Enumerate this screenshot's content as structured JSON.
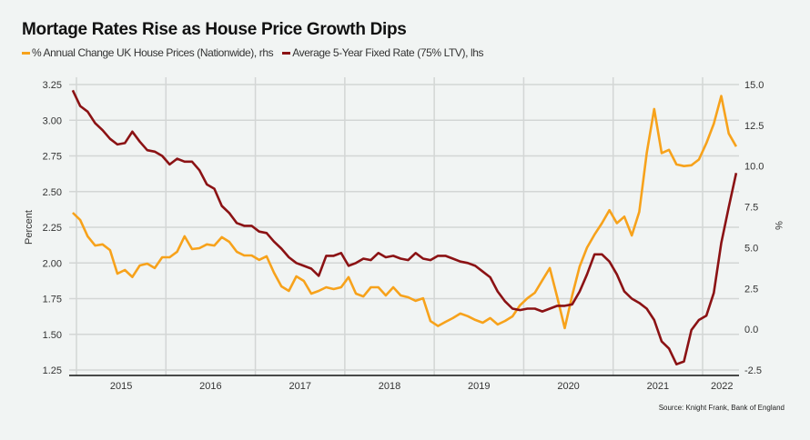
{
  "chart_data": {
    "type": "line",
    "title": "Mortage Rates Rise as House Price Growth Dips",
    "ylabel_left": "Percent",
    "ylabel_right": "%",
    "source": "Source: Knight Frank, Bank of England",
    "x_start": "2014-12",
    "x_end": "2022-05",
    "x_frequency": "monthly",
    "x_tick_labels": [
      "2015",
      "2016",
      "2017",
      "2018",
      "2019",
      "2020",
      "2021",
      "2022"
    ],
    "ylim_left": [
      1.25,
      3.25
    ],
    "ylim_right": [
      -2.5,
      15.0
    ],
    "y_ticks_left": [
      "3.25",
      "3.00",
      "2.75",
      "2.50",
      "2.25",
      "2.00",
      "1.75",
      "1.50",
      "1.25"
    ],
    "y_ticks_right": [
      "15.0",
      "12.5",
      "10.0",
      "7.5",
      "5.0",
      "2.5",
      "0.0",
      "-2.5"
    ],
    "grid": true,
    "legend_position": "top-left",
    "series": [
      {
        "name": "% Annual Change UK House Prices (Nationwide), rhs",
        "axis": "right",
        "color": "#f7a21b",
        "values": [
          7.14,
          6.7,
          5.7,
          5.13,
          5.2,
          4.85,
          3.41,
          3.63,
          3.2,
          3.91,
          4.02,
          3.75,
          4.41,
          4.41,
          4.75,
          5.7,
          4.91,
          4.97,
          5.2,
          5.13,
          5.64,
          5.36,
          4.75,
          4.52,
          4.52,
          4.25,
          4.47,
          3.47,
          2.63,
          2.35,
          3.24,
          2.96,
          2.18,
          2.35,
          2.57,
          2.46,
          2.57,
          3.19,
          2.18,
          2.01,
          2.57,
          2.57,
          2.07,
          2.57,
          2.07,
          1.96,
          1.74,
          1.9,
          0.5,
          0.2,
          0.45,
          0.68,
          0.96,
          0.8,
          0.57,
          0.4,
          0.68,
          0.29,
          0.51,
          0.79,
          1.46,
          1.9,
          2.24,
          3.0,
          3.75,
          1.96,
          0.07,
          2.07,
          3.85,
          5.0,
          5.8,
          6.5,
          7.3,
          6.5,
          6.9,
          5.75,
          7.2,
          10.8,
          13.5,
          10.8,
          11.0,
          10.1,
          10.0,
          10.05,
          10.4,
          11.4,
          12.6,
          14.3,
          12.0,
          11.2
        ]
      },
      {
        "name": "Average 5-Year Fixed Rate (75% LTV), lhs",
        "axis": "left",
        "color": "#8b1214",
        "values": [
          3.21,
          3.1,
          3.06,
          2.98,
          2.93,
          2.87,
          2.83,
          2.84,
          2.92,
          2.85,
          2.79,
          2.78,
          2.75,
          2.69,
          2.73,
          2.71,
          2.71,
          2.65,
          2.55,
          2.52,
          2.4,
          2.35,
          2.28,
          2.26,
          2.26,
          2.22,
          2.21,
          2.15,
          2.1,
          2.04,
          2.0,
          1.98,
          1.96,
          1.91,
          2.05,
          2.05,
          2.07,
          1.98,
          2.0,
          2.03,
          2.02,
          2.07,
          2.04,
          2.05,
          2.03,
          2.02,
          2.07,
          2.03,
          2.02,
          2.05,
          2.05,
          2.03,
          2.01,
          2.0,
          1.98,
          1.94,
          1.9,
          1.8,
          1.73,
          1.68,
          1.67,
          1.68,
          1.68,
          1.66,
          1.68,
          1.7,
          1.7,
          1.71,
          1.8,
          1.92,
          2.06,
          2.06,
          2.01,
          1.92,
          1.8,
          1.75,
          1.72,
          1.68,
          1.6,
          1.45,
          1.4,
          1.29,
          1.31,
          1.53,
          1.6,
          1.63,
          1.79,
          2.14,
          2.39,
          2.63
        ]
      }
    ]
  }
}
